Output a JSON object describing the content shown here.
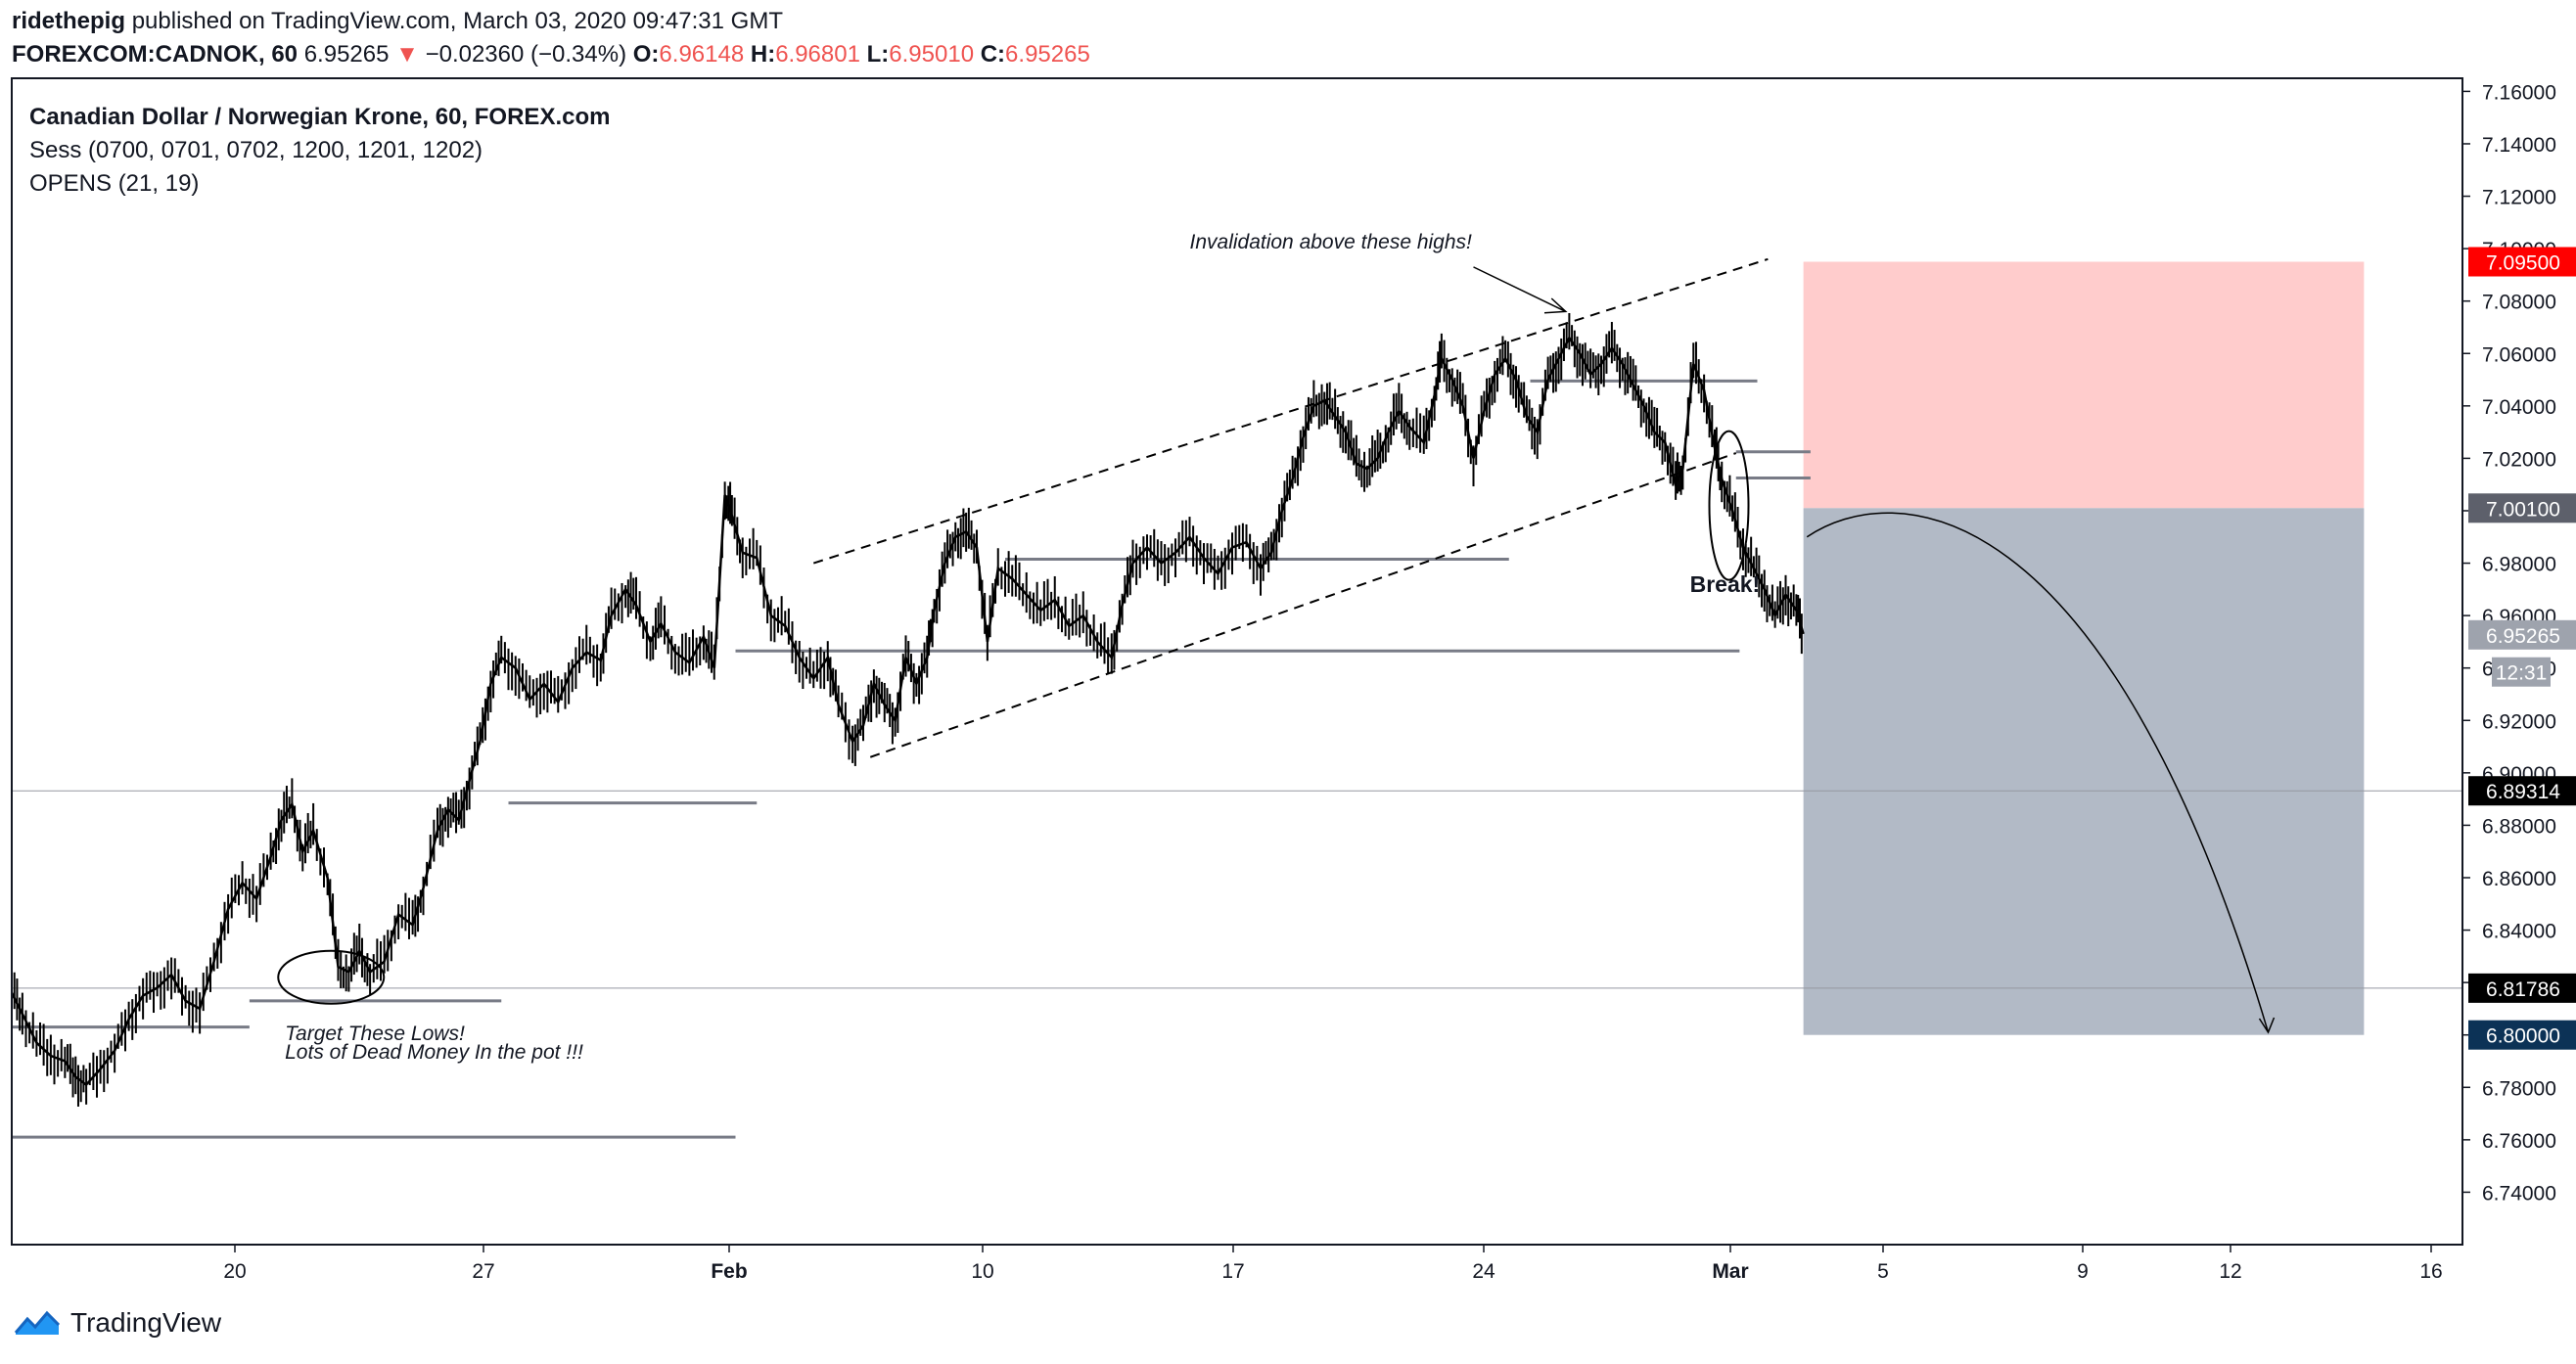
{
  "header": {
    "author": "ridethepig",
    "published_text": "published on TradingView.com, March 03, 2020 09:47:31 GMT",
    "symbol": "FOREXCOM:CADNOK, 60",
    "last": "6.95265",
    "change": "−0.02360 (−0.34%)",
    "o_label": "O:",
    "o": "6.96148",
    "h_label": "H:",
    "h": "6.96801",
    "l_label": "L:",
    "l": "6.95010",
    "c_label": "C:",
    "c": "6.95265"
  },
  "legend": {
    "title": "Canadian Dollar / Norwegian Krone, 60, FOREX.com",
    "sess": "Sess (0700, 0701, 0702, 1200, 1201, 1202)",
    "opens": "OPENS (21, 19)"
  },
  "brand": {
    "name": "TradingView"
  },
  "chart_data": {
    "type": "line",
    "y_range": [
      6.72,
      7.165
    ],
    "y_ticks": [
      "7.16000",
      "7.14000",
      "7.12000",
      "7.10000",
      "7.08000",
      "7.06000",
      "7.04000",
      "7.02000",
      "7.00000",
      "6.98000",
      "6.96000",
      "6.94000",
      "6.92000",
      "6.90000",
      "6.88000",
      "6.86000",
      "6.84000",
      "6.82000",
      "6.80000",
      "6.78000",
      "6.76000",
      "6.74000"
    ],
    "x_ticks": [
      "20",
      "27",
      "Feb",
      "10",
      "17",
      "24",
      "Mar",
      "5",
      "9",
      "12",
      "16"
    ],
    "price_series": [
      [
        0,
        6.816
      ],
      [
        0.3,
        6.808
      ],
      [
        0.7,
        6.797
      ],
      [
        1.1,
        6.792
      ],
      [
        1.5,
        6.79
      ],
      [
        1.8,
        6.784
      ],
      [
        2.1,
        6.781
      ],
      [
        2.5,
        6.787
      ],
      [
        2.9,
        6.794
      ],
      [
        3.3,
        6.806
      ],
      [
        3.7,
        6.815
      ],
      [
        4.1,
        6.818
      ],
      [
        4.5,
        6.823
      ],
      [
        4.9,
        6.813
      ],
      [
        5.3,
        6.81
      ],
      [
        5.7,
        6.828
      ],
      [
        6.1,
        6.848
      ],
      [
        6.5,
        6.858
      ],
      [
        6.9,
        6.852
      ],
      [
        7.3,
        6.868
      ],
      [
        7.6,
        6.882
      ],
      [
        7.9,
        6.888
      ],
      [
        8.2,
        6.87
      ],
      [
        8.5,
        6.878
      ],
      [
        8.9,
        6.86
      ],
      [
        9.2,
        6.826
      ],
      [
        9.5,
        6.824
      ],
      [
        9.8,
        6.832
      ],
      [
        10.1,
        6.824
      ],
      [
        10.5,
        6.828
      ],
      [
        10.9,
        6.846
      ],
      [
        11.3,
        6.842
      ],
      [
        11.6,
        6.856
      ],
      [
        12.0,
        6.878
      ],
      [
        12.3,
        6.886
      ],
      [
        12.6,
        6.882
      ],
      [
        12.9,
        6.897
      ],
      [
        13.2,
        6.912
      ],
      [
        13.5,
        6.934
      ],
      [
        13.8,
        6.944
      ],
      [
        14.2,
        6.94
      ],
      [
        14.6,
        6.928
      ],
      [
        15.0,
        6.934
      ],
      [
        15.4,
        6.927
      ],
      [
        15.8,
        6.94
      ],
      [
        16.2,
        6.946
      ],
      [
        16.6,
        6.943
      ],
      [
        16.9,
        6.96
      ],
      [
        17.3,
        6.97
      ],
      [
        17.6,
        6.964
      ],
      [
        18.0,
        6.95
      ],
      [
        18.3,
        6.957
      ],
      [
        18.7,
        6.946
      ],
      [
        19.1,
        6.942
      ],
      [
        19.5,
        6.952
      ],
      [
        19.8,
        6.94
      ],
      [
        20.1,
        7.006
      ],
      [
        20.3,
        6.998
      ],
      [
        20.6,
        6.984
      ],
      [
        21.0,
        6.982
      ],
      [
        21.4,
        6.96
      ],
      [
        21.8,
        6.956
      ],
      [
        22.2,
        6.944
      ],
      [
        22.6,
        6.936
      ],
      [
        23.0,
        6.944
      ],
      [
        23.3,
        6.926
      ],
      [
        23.7,
        6.912
      ],
      [
        24.0,
        6.918
      ],
      [
        24.3,
        6.934
      ],
      [
        24.6,
        6.926
      ],
      [
        24.9,
        6.92
      ],
      [
        25.2,
        6.944
      ],
      [
        25.5,
        6.934
      ],
      [
        25.8,
        6.944
      ],
      [
        26.0,
        6.962
      ],
      [
        26.3,
        6.98
      ],
      [
        26.6,
        6.99
      ],
      [
        26.9,
        6.992
      ],
      [
        27.2,
        6.986
      ],
      [
        27.5,
        6.95
      ],
      [
        27.8,
        6.978
      ],
      [
        28.2,
        6.974
      ],
      [
        28.6,
        6.968
      ],
      [
        29.0,
        6.962
      ],
      [
        29.4,
        6.966
      ],
      [
        29.8,
        6.956
      ],
      [
        30.2,
        6.96
      ],
      [
        30.6,
        6.95
      ],
      [
        31.0,
        6.944
      ],
      [
        31.3,
        6.964
      ],
      [
        31.6,
        6.98
      ],
      [
        32.0,
        6.986
      ],
      [
        32.4,
        6.98
      ],
      [
        32.8,
        6.984
      ],
      [
        33.2,
        6.99
      ],
      [
        33.6,
        6.982
      ],
      [
        34.0,
        6.976
      ],
      [
        34.4,
        6.986
      ],
      [
        34.8,
        6.988
      ],
      [
        35.2,
        6.978
      ],
      [
        35.5,
        6.984
      ],
      [
        35.8,
        7.0
      ],
      [
        36.1,
        7.012
      ],
      [
        36.4,
        7.028
      ],
      [
        36.7,
        7.04
      ],
      [
        37.0,
        7.042
      ],
      [
        37.3,
        7.036
      ],
      [
        37.6,
        7.03
      ],
      [
        37.9,
        7.018
      ],
      [
        38.2,
        7.016
      ],
      [
        38.5,
        7.02
      ],
      [
        38.8,
        7.03
      ],
      [
        39.1,
        7.038
      ],
      [
        39.4,
        7.032
      ],
      [
        39.8,
        7.026
      ],
      [
        40.1,
        7.044
      ],
      [
        40.3,
        7.058
      ],
      [
        40.6,
        7.05
      ],
      [
        40.9,
        7.04
      ],
      [
        41.2,
        7.02
      ],
      [
        41.5,
        7.038
      ],
      [
        41.8,
        7.052
      ],
      [
        42.1,
        7.058
      ],
      [
        42.4,
        7.05
      ],
      [
        42.7,
        7.036
      ],
      [
        43.0,
        7.03
      ],
      [
        43.3,
        7.05
      ],
      [
        43.6,
        7.058
      ],
      [
        43.9,
        7.066
      ],
      [
        44.2,
        7.06
      ],
      [
        44.5,
        7.052
      ],
      [
        44.8,
        7.056
      ],
      [
        45.1,
        7.062
      ],
      [
        45.4,
        7.056
      ],
      [
        45.7,
        7.048
      ],
      [
        46.0,
        7.04
      ],
      [
        46.3,
        7.03
      ],
      [
        46.6,
        7.026
      ],
      [
        46.9,
        7.01
      ],
      [
        47.1,
        7.016
      ],
      [
        47.4,
        7.056
      ],
      [
        47.7,
        7.046
      ],
      [
        48.0,
        7.024
      ],
      [
        48.2,
        7.012
      ],
      [
        48.5,
        7.0
      ],
      [
        48.8,
        6.986
      ],
      [
        49.1,
        6.978
      ],
      [
        49.4,
        6.97
      ],
      [
        49.7,
        6.96
      ],
      [
        50.0,
        6.968
      ],
      [
        50.3,
        6.962
      ],
      [
        50.5,
        6.953
      ]
    ],
    "extended_lines": [
      {
        "label": "6.89314",
        "y": 6.89314
      },
      {
        "label": "6.81786",
        "y": 6.81786
      }
    ],
    "position": {
      "type": "short",
      "entry": 7.001,
      "stop": 7.095,
      "target": 6.8,
      "x_start": 50.5,
      "x_end": 66.3
    },
    "levels": [
      {
        "y": 6.803,
        "x0": 0,
        "x1": 6.7
      },
      {
        "y": 6.761,
        "x0": 0,
        "x1": 20.4
      },
      {
        "y": 6.813,
        "x0": 6.7,
        "x1": 13.8
      },
      {
        "y": 6.8885,
        "x0": 14.0,
        "x1": 21.0
      },
      {
        "y": 6.9465,
        "x0": 20.4,
        "x1": 48.7
      },
      {
        "y": 6.9815,
        "x0": 28.0,
        "x1": 42.2
      },
      {
        "y": 7.0495,
        "x0": 42.8,
        "x1": 49.2
      },
      {
        "y": 7.0225,
        "x0": 48.6,
        "x1": 50.7
      },
      {
        "y": 7.0125,
        "x0": 48.6,
        "x1": 50.7
      }
    ],
    "channel": {
      "lower": [
        [
          24.2,
          6.906
        ],
        [
          48.6,
          7.022
        ]
      ],
      "upper": [
        [
          22.6,
          6.98
        ],
        [
          49.5,
          7.096
        ]
      ]
    },
    "annotations": [
      {
        "text": "Invalidation above these highs!",
        "x": 33.2,
        "y": 7.1
      },
      {
        "text": "Target These Lows!",
        "x": 7.7,
        "y": 6.798
      },
      {
        "text": "Lots of Dead Money In the pot !!!",
        "x": 7.7,
        "y": 6.791
      },
      {
        "text": "Break!",
        "x": 47.3,
        "y": 6.969
      }
    ],
    "price_labels": [
      {
        "text": "7.09500",
        "y": 7.095,
        "bg": "#ff0000",
        "fg": "#ffffff"
      },
      {
        "text": "7.00100",
        "y": 7.001,
        "bg": "#5d606b",
        "fg": "#ffffff"
      },
      {
        "text": "6.95265",
        "y": 6.95265,
        "bg": "#9ea3ad",
        "fg": "#ffffff"
      },
      {
        "text": "12:31",
        "y": 6.9385,
        "bg": "#9ea3ad",
        "fg": "#ffffff"
      },
      {
        "text": "6.89314",
        "y": 6.89314,
        "bg": "#000000",
        "fg": "#ffffff"
      },
      {
        "text": "6.81786",
        "y": 6.81786,
        "bg": "#000000",
        "fg": "#ffffff"
      },
      {
        "text": "6.80000",
        "y": 6.8,
        "bg": "#0c3256",
        "fg": "#ffffff"
      }
    ],
    "colors": {
      "stop_zone": "#ffcccc",
      "target_zone": "#b2bac6",
      "candles": "#000000",
      "level": "#787b86"
    }
  }
}
